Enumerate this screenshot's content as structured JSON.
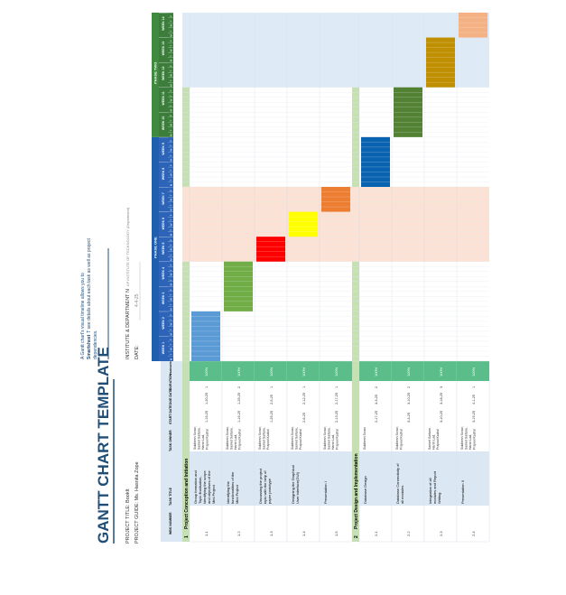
{
  "doc": {
    "title": "GANTT CHART TEMPLATE",
    "project_title_label": "PROJECT TITLE: BookIt",
    "project_guide_label": "PROJECT GUIDE: Ms. Hasnita Zope",
    "institute_label": "INSTITUTE & DEPARTMENT N",
    "institute_value": "AP INSTITUTE OF TECHNOLOGY (Department)",
    "date_label": "DATE:",
    "date_value": "4-4-25",
    "note_line1": "A Gantt chart's visual timeline allows you to",
    "note_line2_link": "Smartsheet",
    "note_line2_rest": "T see details about each task as well as project",
    "note_line3": "dependencies."
  },
  "columns": {
    "wbs": "WBS NUMBER",
    "task_title": "TASK TITLE",
    "task_owner": "TASK OWNER",
    "start_date": "START DATE",
    "due_date": "DUE DATE",
    "duration": "DURATION",
    "pct_complete": "PERCENTAGE OF TASK COMPLETE"
  },
  "phases": [
    {
      "label": "PHASE ONE",
      "color": "#1f5fad"
    },
    {
      "label": "PHASE TWO",
      "color": "#3f8a3f"
    }
  ],
  "weeks": [
    "WEEK 1",
    "WEEK 2",
    "WEEK 3",
    "WEEK 4",
    "WEEK 5",
    "WEEK 6",
    "WEEK 7",
    "WEEK 8",
    "WEEK 9",
    "WEEK 10",
    "WEEK 11",
    "WEEK 12",
    "WEEK 13",
    "WEEK 14"
  ],
  "day_letters": [
    "M",
    "T",
    "W",
    "T",
    "F"
  ],
  "sections": [
    {
      "num": "1",
      "title": "Project Conception and Initiation",
      "tasks": [
        {
          "wbs": "1.1",
          "title": "Group formation and Topic finalisation, Identifying the scope and objectives of the Mini Project",
          "owner": "Siddhesh Sonar, Sanket Sartane, Harsh Lad, Prajwal Kadral",
          "start": "1-16-25",
          "due": "1-20-25",
          "duration": "1",
          "pct": "100%",
          "bar_color": "#5b9bd5",
          "week_start": 1,
          "week_end": 2
        },
        {
          "wbs": "1.2",
          "title": "Identifying the functionalities of the Mini Project",
          "owner": "Siddhesh Sonar, Sanket Sartane, Harsh Lad, Prajwal Kadral",
          "start": "1-16-25",
          "due": "1-29-25",
          "duration": "2",
          "pct": "100%",
          "bar_color": "#70ad47",
          "week_start": 3,
          "week_end": 4
        },
        {
          "wbs": "1.3",
          "title": "Discussing the project topic with the help of paper prototype",
          "owner": "Siddhesh Sonar, Sanket Sartane, Prajwal Kadral",
          "start": "1-29-25",
          "due": "2-5-25",
          "duration": "1",
          "pct": "100%",
          "bar_color": "#ff0000",
          "week_start": 5,
          "week_end": 5
        },
        {
          "wbs": "1.4",
          "title": "Designing the Graphical User Interface(GUI)",
          "owner": "Siddhesh Sonar, Sanket Sartane, Prajwal Kadral",
          "start": "2-6-25",
          "due": "2-12-25",
          "duration": "1",
          "pct": "100%",
          "bar_color": "#ffff00",
          "week_start": 6,
          "week_end": 6
        },
        {
          "wbs": "1.5",
          "title": "Presentation I",
          "owner": "Siddhesh Sonar, Sanket Sartane, Harsh Lad, Prajwal Kadral",
          "start": "2-13-25",
          "due": "2-17-25",
          "duration": "1",
          "pct": "100%",
          "bar_color": "#ed7d31",
          "week_start": 7,
          "week_end": 7
        }
      ]
    },
    {
      "num": "2",
      "title": "Project Design and Implementation",
      "tasks": [
        {
          "wbs": "2.1",
          "title": "Database Design",
          "owner": "Siddhesh Sonar",
          "start": "2-17-25",
          "due": "3-3-25",
          "duration": "2",
          "pct": "100%",
          "bar_color": "#0a63b0",
          "week_start": 8,
          "week_end": 9
        },
        {
          "wbs": "2.2",
          "title": "Database Connectivity of all modules",
          "owner": "Siddhesh Sonar, Prajwal Kadral",
          "start": "3-3-25",
          "due": "3-10-25",
          "duration": "2",
          "pct": "100%",
          "bar_color": "#548235",
          "week_start": 10,
          "week_end": 11
        },
        {
          "wbs": "2.3",
          "title": "Integration of all modules and Report Writing",
          "owner": "Sanket Sartane, Harsh Lad, Prajwal Kadral",
          "start": "3-10-25",
          "due": "3-18-25",
          "duration": "3",
          "pct": "100%",
          "bar_color": "#bf8f00",
          "week_start": 12,
          "week_end": 13
        },
        {
          "wbs": "2.4",
          "title": "Presentation II",
          "owner": "Siddhesh Sonar, Sanket Sartane, Harsh Lad, Prajwal Kadral",
          "start": "3-19-25",
          "due": "4-1-25",
          "duration": "1",
          "pct": "100%",
          "bar_color": "#f4b183",
          "week_start": 14,
          "week_end": 14
        }
      ]
    }
  ],
  "colors": {
    "title": "#1f4e79",
    "header_fill": "#dbe7f3",
    "pct_fill": "#5bbd8a",
    "section_fill": "#c6e0b4",
    "phase_one_week": "#2e64b7",
    "phase_two_week": "#3c7d3c",
    "highlight_pink": "#fbe2d5",
    "highlight_blue": "#deebf7"
  }
}
